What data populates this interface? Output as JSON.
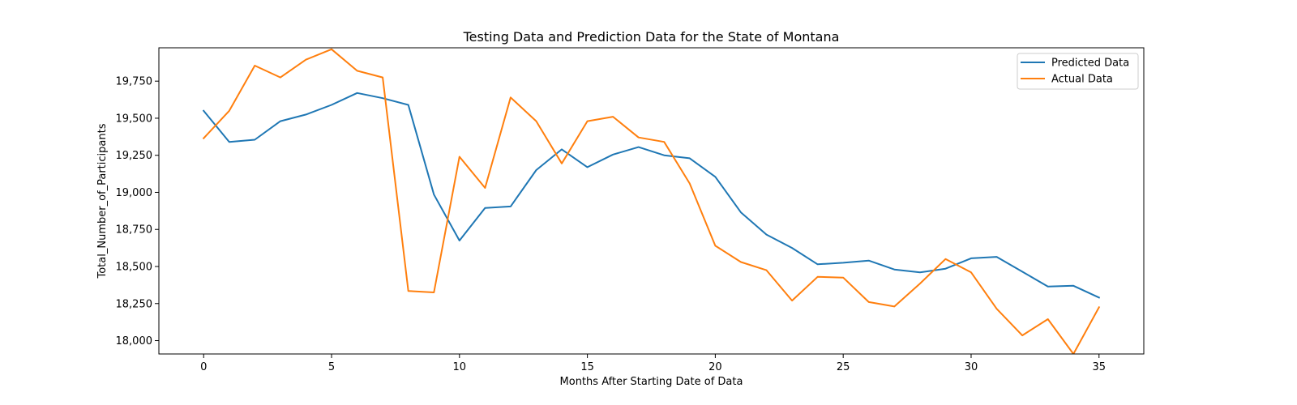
{
  "chart_data": {
    "type": "line",
    "title": "Testing Data and Prediction Data for the State of Montana",
    "xlabel": "Months After Starting Date of Data",
    "ylabel": "Total_Number_of_Participants",
    "xlim": [
      -1.75,
      36.75
    ],
    "ylim": [
      17910,
      19975
    ],
    "x_ticks": [
      0,
      5,
      10,
      15,
      20,
      25,
      30,
      35
    ],
    "y_ticks": [
      18000,
      18250,
      18500,
      18750,
      19000,
      19250,
      19500,
      19750
    ],
    "y_tick_labels": [
      "18,000",
      "18,250",
      "18,500",
      "18,750",
      "19,000",
      "19,250",
      "19,500",
      "19,750"
    ],
    "legend_position": "top-right",
    "x": [
      0,
      1,
      2,
      3,
      4,
      5,
      6,
      7,
      8,
      9,
      10,
      11,
      12,
      13,
      14,
      15,
      16,
      17,
      18,
      19,
      20,
      21,
      22,
      23,
      24,
      25,
      26,
      27,
      28,
      29,
      30,
      31,
      32,
      33,
      34,
      35
    ],
    "series": [
      {
        "name": "Predicted Data",
        "color": "#1f77b4",
        "values": [
          19550,
          19340,
          19355,
          19480,
          19525,
          19590,
          19670,
          19635,
          19590,
          18985,
          18675,
          18895,
          18905,
          19150,
          19290,
          19170,
          19255,
          19305,
          19250,
          19230,
          19105,
          18865,
          18715,
          18625,
          18515,
          18525,
          18540,
          18480,
          18460,
          18485,
          18555,
          18565,
          18465,
          18365,
          18370,
          18290
        ]
      },
      {
        "name": "Actual Data",
        "color": "#ff7f0e",
        "values": [
          19365,
          19550,
          19855,
          19775,
          19895,
          19965,
          19820,
          19775,
          18335,
          18325,
          19240,
          19030,
          19640,
          19480,
          19195,
          19480,
          19510,
          19370,
          19340,
          19060,
          18640,
          18530,
          18475,
          18270,
          18430,
          18425,
          18260,
          18230,
          18385,
          18550,
          18460,
          18215,
          18035,
          18145,
          17910,
          18225
        ]
      }
    ]
  }
}
